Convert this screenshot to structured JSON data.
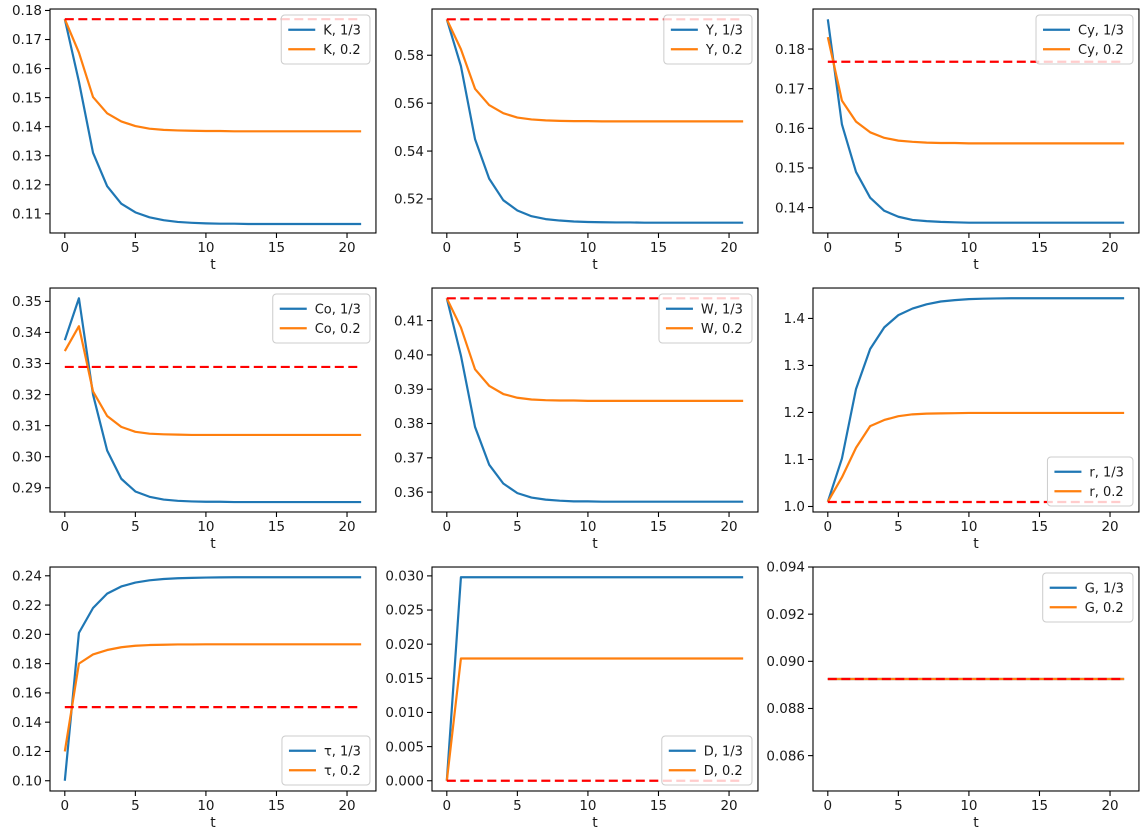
{
  "figure": {
    "background": "#ffffff",
    "text_color": "#1a1a1a",
    "spine_color": "#000000",
    "legend_border_color": "#cccccc",
    "legend_fill": "rgba(255,255,255,0.8)"
  },
  "chart_common": {
    "xlabel": "t",
    "x": [
      0,
      1,
      2,
      3,
      4,
      5,
      6,
      7,
      8,
      9,
      10,
      11,
      12,
      13,
      14,
      15,
      16,
      17,
      18,
      19,
      20,
      21
    ],
    "xlim": [
      -1.05,
      22.05
    ],
    "xticks": {
      "values": [
        0,
        5,
        10,
        15,
        20
      ],
      "labels": [
        "0",
        "5",
        "10",
        "15",
        "20"
      ]
    },
    "grid": false,
    "colors": {
      "blue": "#1f77b4",
      "orange": "#ff7f0e",
      "red": "#ff0000"
    }
  },
  "chart_data": [
    {
      "id": "K",
      "type": "line",
      "legend_loc": "upper-right",
      "ylim": [
        0.1034,
        0.1805
      ],
      "yticks": {
        "values": [
          0.11,
          0.12,
          0.13,
          0.14,
          0.15,
          0.16,
          0.17,
          0.18
        ],
        "labels": [
          "0.11",
          "0.12",
          "0.13",
          "0.14",
          "0.15",
          "0.16",
          "0.17",
          "0.18"
        ]
      },
      "series": [
        {
          "name": "K, 1/3",
          "color": "blue",
          "style": "solid",
          "in_legend": true,
          "values": [
            0.177,
            0.1555,
            0.131,
            0.1195,
            0.1135,
            0.1105,
            0.1088,
            0.1078,
            0.1072,
            0.1069,
            0.1067,
            0.1066,
            0.1066,
            0.1065,
            0.1065,
            0.1065,
            0.1065,
            0.1065,
            0.1065,
            0.1065,
            0.1065,
            0.1065
          ]
        },
        {
          "name": "K, 0.2",
          "color": "orange",
          "style": "solid",
          "in_legend": true,
          "values": [
            0.177,
            0.1655,
            0.1502,
            0.1446,
            0.1418,
            0.1402,
            0.1393,
            0.1389,
            0.1387,
            0.1386,
            0.1385,
            0.1385,
            0.1384,
            0.1384,
            0.1384,
            0.1384,
            0.1384,
            0.1384,
            0.1384,
            0.1384,
            0.1384,
            0.1384
          ]
        },
        {
          "name": "steady state",
          "color": "red",
          "style": "dashed",
          "in_legend": false,
          "constant": 0.177
        }
      ]
    },
    {
      "id": "Y",
      "type": "line",
      "legend_loc": "upper-right",
      "ylim": [
        0.5058,
        0.5993
      ],
      "yticks": {
        "values": [
          0.52,
          0.54,
          0.56,
          0.58
        ],
        "labels": [
          "0.52",
          "0.54",
          "0.56",
          "0.58"
        ]
      },
      "series": [
        {
          "name": "Y, 1/3",
          "color": "blue",
          "style": "solid",
          "in_legend": true,
          "values": [
            0.595,
            0.5755,
            0.545,
            0.5285,
            0.5195,
            0.5152,
            0.5128,
            0.5116,
            0.511,
            0.5106,
            0.5104,
            0.5103,
            0.5102,
            0.5102,
            0.5101,
            0.5101,
            0.5101,
            0.5101,
            0.5101,
            0.5101,
            0.5101,
            0.5101
          ]
        },
        {
          "name": "Y, 0.2",
          "color": "orange",
          "style": "solid",
          "in_legend": true,
          "values": [
            0.595,
            0.5825,
            0.566,
            0.5592,
            0.5558,
            0.554,
            0.5532,
            0.5528,
            0.5526,
            0.5525,
            0.5525,
            0.5524,
            0.5524,
            0.5524,
            0.5524,
            0.5524,
            0.5524,
            0.5524,
            0.5524,
            0.5524,
            0.5524,
            0.5524
          ]
        },
        {
          "name": "steady state",
          "color": "red",
          "style": "dashed",
          "in_legend": false,
          "constant": 0.595
        }
      ]
    },
    {
      "id": "Cy",
      "type": "line",
      "legend_loc": "upper-right",
      "ylim": [
        0.1336,
        0.1901
      ],
      "yticks": {
        "values": [
          0.14,
          0.15,
          0.16,
          0.17,
          0.18
        ],
        "labels": [
          "0.14",
          "0.15",
          "0.16",
          "0.17",
          "0.18"
        ]
      },
      "series": [
        {
          "name": "Cy, 1/3",
          "color": "blue",
          "style": "solid",
          "in_legend": true,
          "values": [
            0.1875,
            0.161,
            0.149,
            0.1425,
            0.1392,
            0.1377,
            0.1369,
            0.1366,
            0.1364,
            0.1363,
            0.1362,
            0.1362,
            0.1362,
            0.1362,
            0.1362,
            0.1362,
            0.1362,
            0.1362,
            0.1362,
            0.1362,
            0.1362,
            0.1362
          ]
        },
        {
          "name": "Cy, 0.2",
          "color": "orange",
          "style": "solid",
          "in_legend": true,
          "values": [
            0.183,
            0.167,
            0.1617,
            0.159,
            0.1576,
            0.1569,
            0.1566,
            0.1564,
            0.1563,
            0.1563,
            0.1562,
            0.1562,
            0.1562,
            0.1562,
            0.1562,
            0.1562,
            0.1562,
            0.1562,
            0.1562,
            0.1562,
            0.1562,
            0.1562
          ]
        },
        {
          "name": "steady state",
          "color": "red",
          "style": "dashed",
          "in_legend": false,
          "constant": 0.1768
        }
      ]
    },
    {
      "id": "Co",
      "type": "line",
      "legend_loc": "upper-right",
      "ylim": [
        0.2822,
        0.3543
      ],
      "yticks": {
        "values": [
          0.29,
          0.3,
          0.31,
          0.32,
          0.33,
          0.34,
          0.35
        ],
        "labels": [
          "0.29",
          "0.30",
          "0.31",
          "0.32",
          "0.33",
          "0.34",
          "0.35"
        ]
      },
      "series": [
        {
          "name": "Co, 1/3",
          "color": "blue",
          "style": "solid",
          "in_legend": true,
          "values": [
            0.3375,
            0.351,
            0.32,
            0.302,
            0.2929,
            0.2888,
            0.2871,
            0.2862,
            0.2858,
            0.2856,
            0.2855,
            0.2855,
            0.2854,
            0.2854,
            0.2854,
            0.2854,
            0.2854,
            0.2854,
            0.2854,
            0.2854,
            0.2854,
            0.2854
          ]
        },
        {
          "name": "Co, 0.2",
          "color": "orange",
          "style": "solid",
          "in_legend": true,
          "values": [
            0.334,
            0.342,
            0.321,
            0.3131,
            0.3096,
            0.308,
            0.3074,
            0.3072,
            0.3071,
            0.307,
            0.307,
            0.307,
            0.307,
            0.307,
            0.307,
            0.307,
            0.307,
            0.307,
            0.307,
            0.307,
            0.307,
            0.307
          ]
        },
        {
          "name": "steady state",
          "color": "red",
          "style": "dashed",
          "in_legend": false,
          "constant": 0.3289
        }
      ]
    },
    {
      "id": "W",
      "type": "line",
      "legend_loc": "upper-right",
      "ylim": [
        0.3542,
        0.4195
      ],
      "yticks": {
        "values": [
          0.36,
          0.37,
          0.38,
          0.39,
          0.4,
          0.41
        ],
        "labels": [
          "0.36",
          "0.37",
          "0.38",
          "0.39",
          "0.40",
          "0.41"
        ]
      },
      "series": [
        {
          "name": "W, 1/3",
          "color": "blue",
          "style": "solid",
          "in_legend": true,
          "values": [
            0.4165,
            0.3998,
            0.379,
            0.368,
            0.3625,
            0.3597,
            0.3584,
            0.3578,
            0.3575,
            0.3573,
            0.3573,
            0.3572,
            0.3572,
            0.3572,
            0.3572,
            0.3572,
            0.3572,
            0.3572,
            0.3572,
            0.3572,
            0.3572,
            0.3572
          ]
        },
        {
          "name": "W, 0.2",
          "color": "orange",
          "style": "solid",
          "in_legend": true,
          "values": [
            0.4165,
            0.408,
            0.3958,
            0.391,
            0.3886,
            0.3875,
            0.387,
            0.3868,
            0.3867,
            0.3867,
            0.3866,
            0.3866,
            0.3866,
            0.3866,
            0.3866,
            0.3866,
            0.3866,
            0.3866,
            0.3866,
            0.3866,
            0.3866,
            0.3866
          ]
        },
        {
          "name": "steady state",
          "color": "red",
          "style": "dashed",
          "in_legend": false,
          "constant": 0.4165
        }
      ]
    },
    {
      "id": "r",
      "type": "line",
      "legend_loc": "lower-right",
      "ylim": [
        0.9883,
        1.4647
      ],
      "yticks": {
        "values": [
          1.0,
          1.1,
          1.2,
          1.3,
          1.4
        ],
        "labels": [
          "1.0",
          "1.1",
          "1.2",
          "1.3",
          "1.4"
        ]
      },
      "series": [
        {
          "name": "r, 1/3",
          "color": "blue",
          "style": "solid",
          "in_legend": true,
          "values": [
            1.01,
            1.102,
            1.25,
            1.335,
            1.381,
            1.407,
            1.421,
            1.43,
            1.436,
            1.439,
            1.441,
            1.442,
            1.4425,
            1.443,
            1.443,
            1.443,
            1.443,
            1.443,
            1.443,
            1.443,
            1.443,
            1.443
          ]
        },
        {
          "name": "r, 0.2",
          "color": "orange",
          "style": "solid",
          "in_legend": true,
          "values": [
            1.01,
            1.062,
            1.125,
            1.171,
            1.184,
            1.192,
            1.196,
            1.1975,
            1.198,
            1.1985,
            1.199,
            1.199,
            1.199,
            1.199,
            1.199,
            1.199,
            1.199,
            1.199,
            1.199,
            1.199,
            1.199,
            1.199
          ]
        },
        {
          "name": "steady state",
          "color": "red",
          "style": "dashed",
          "in_legend": false,
          "constant": 1.0095
        }
      ]
    },
    {
      "id": "τ",
      "type": "line",
      "legend_loc": "lower-right",
      "ylim": [
        0.093,
        0.246
      ],
      "yticks": {
        "values": [
          0.1,
          0.12,
          0.14,
          0.16,
          0.18,
          0.2,
          0.22,
          0.24
        ],
        "labels": [
          "0.10",
          "0.12",
          "0.14",
          "0.16",
          "0.18",
          "0.20",
          "0.22",
          "0.24"
        ]
      },
      "series": [
        {
          "name": "τ, 1/3",
          "color": "blue",
          "style": "solid",
          "in_legend": true,
          "values": [
            0.1,
            0.201,
            0.218,
            0.2278,
            0.2327,
            0.2354,
            0.2369,
            0.2378,
            0.2383,
            0.2386,
            0.2388,
            0.2389,
            0.239,
            0.239,
            0.239,
            0.239,
            0.239,
            0.239,
            0.239,
            0.239,
            0.239,
            0.239
          ]
        },
        {
          "name": "τ, 0.2",
          "color": "orange",
          "style": "solid",
          "in_legend": true,
          "values": [
            0.12,
            0.18,
            0.1863,
            0.1893,
            0.1912,
            0.1922,
            0.1927,
            0.1929,
            0.1931,
            0.1931,
            0.1932,
            0.1932,
            0.1932,
            0.1932,
            0.1932,
            0.1932,
            0.1932,
            0.1932,
            0.1932,
            0.1932,
            0.1932,
            0.1932
          ]
        },
        {
          "name": "steady state",
          "color": "red",
          "style": "dashed",
          "in_legend": false,
          "constant": 0.1503
        }
      ]
    },
    {
      "id": "D",
      "type": "line",
      "legend_loc": "lower-right",
      "ylim": [
        -0.0015,
        0.0313
      ],
      "yticks": {
        "values": [
          0.0,
          0.005,
          0.01,
          0.015,
          0.02,
          0.025,
          0.03
        ],
        "labels": [
          "0.000",
          "0.005",
          "0.010",
          "0.015",
          "0.020",
          "0.025",
          "0.030"
        ]
      },
      "series": [
        {
          "name": "D, 1/3",
          "color": "blue",
          "style": "solid",
          "in_legend": true,
          "values": [
            0.0,
            0.0298,
            0.0298,
            0.0298,
            0.0298,
            0.0298,
            0.0298,
            0.0298,
            0.0298,
            0.0298,
            0.0298,
            0.0298,
            0.0298,
            0.0298,
            0.0298,
            0.0298,
            0.0298,
            0.0298,
            0.0298,
            0.0298,
            0.0298,
            0.0298
          ]
        },
        {
          "name": "D, 0.2",
          "color": "orange",
          "style": "solid",
          "in_legend": true,
          "values": [
            0.0,
            0.0179,
            0.0179,
            0.0179,
            0.0179,
            0.0179,
            0.0179,
            0.0179,
            0.0179,
            0.0179,
            0.0179,
            0.0179,
            0.0179,
            0.0179,
            0.0179,
            0.0179,
            0.0179,
            0.0179,
            0.0179,
            0.0179,
            0.0179,
            0.0179
          ]
        },
        {
          "name": "steady state",
          "color": "red",
          "style": "dashed",
          "in_legend": false,
          "constant": 0.0
        }
      ]
    },
    {
      "id": "G",
      "type": "line",
      "legend_loc": "upper-right",
      "ylim": [
        0.0845,
        0.094
      ],
      "yticks": {
        "values": [
          0.086,
          0.088,
          0.09,
          0.092,
          0.094
        ],
        "labels": [
          "0.086",
          "0.088",
          "0.090",
          "0.092",
          "0.094"
        ]
      },
      "series": [
        {
          "name": "G, 1/3",
          "color": "blue",
          "style": "solid",
          "in_legend": true,
          "constant": 0.08925
        },
        {
          "name": "G, 0.2",
          "color": "orange",
          "style": "solid",
          "in_legend": true,
          "constant": 0.08925
        },
        {
          "name": "steady state",
          "color": "red",
          "style": "dashed",
          "in_legend": false,
          "constant": 0.08925
        }
      ]
    }
  ]
}
